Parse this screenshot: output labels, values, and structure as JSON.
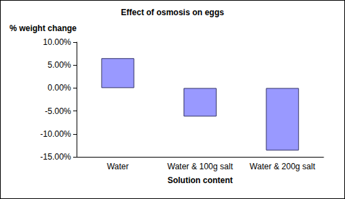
{
  "chart_data": {
    "type": "bar",
    "title": "Effect of osmosis on eggs",
    "y_label": "% weight change",
    "x_label": "Solution content",
    "categories": [
      "Water",
      "Water & 100g salt",
      "Water & 200g salt"
    ],
    "values": [
      6.5,
      -6.2,
      -13.6
    ],
    "color": "#9999ff",
    "ylim": [
      -15,
      10
    ],
    "yticks": [
      {
        "value": -15,
        "label": "-15.00%"
      },
      {
        "value": -10,
        "label": "-10.00%"
      },
      {
        "value": -5,
        "label": "-5.00%"
      },
      {
        "value": 0,
        "label": "0.00%"
      },
      {
        "value": 5,
        "label": "5.00%"
      },
      {
        "value": 10,
        "label": "10.00%"
      }
    ],
    "grid": false
  }
}
